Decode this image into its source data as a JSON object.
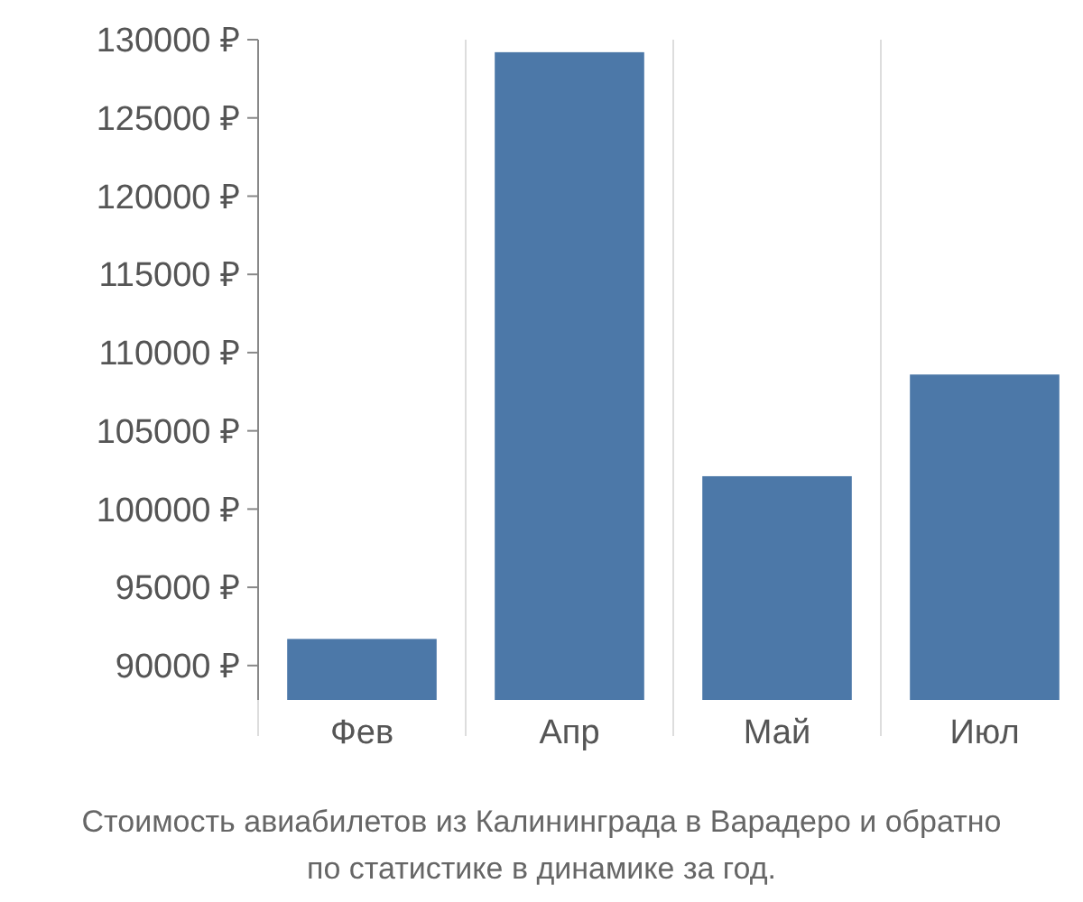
{
  "chart_data": {
    "type": "bar",
    "categories": [
      "Фев",
      "Апр",
      "Май",
      "Июл"
    ],
    "values": [
      91700,
      129200,
      102100,
      108600
    ],
    "color": "#4c78a8",
    "ylim": [
      87800,
      130000
    ],
    "yticks": [
      {
        "value": 90000,
        "label": "90000 ₽"
      },
      {
        "value": 95000,
        "label": "95000 ₽"
      },
      {
        "value": 100000,
        "label": "100000 ₽"
      },
      {
        "value": 105000,
        "label": "105000 ₽"
      },
      {
        "value": 110000,
        "label": "110000 ₽"
      },
      {
        "value": 115000,
        "label": "115000 ₽"
      },
      {
        "value": 120000,
        "label": "120000 ₽"
      },
      {
        "value": 125000,
        "label": "125000 ₽"
      },
      {
        "value": 130000,
        "label": "130000 ₽"
      }
    ],
    "grid": "x",
    "annotations": [
      "Стоимость авиабилетов из Калининграда в Варадеро и обратно",
      "по статистике в динамике за год."
    ]
  }
}
